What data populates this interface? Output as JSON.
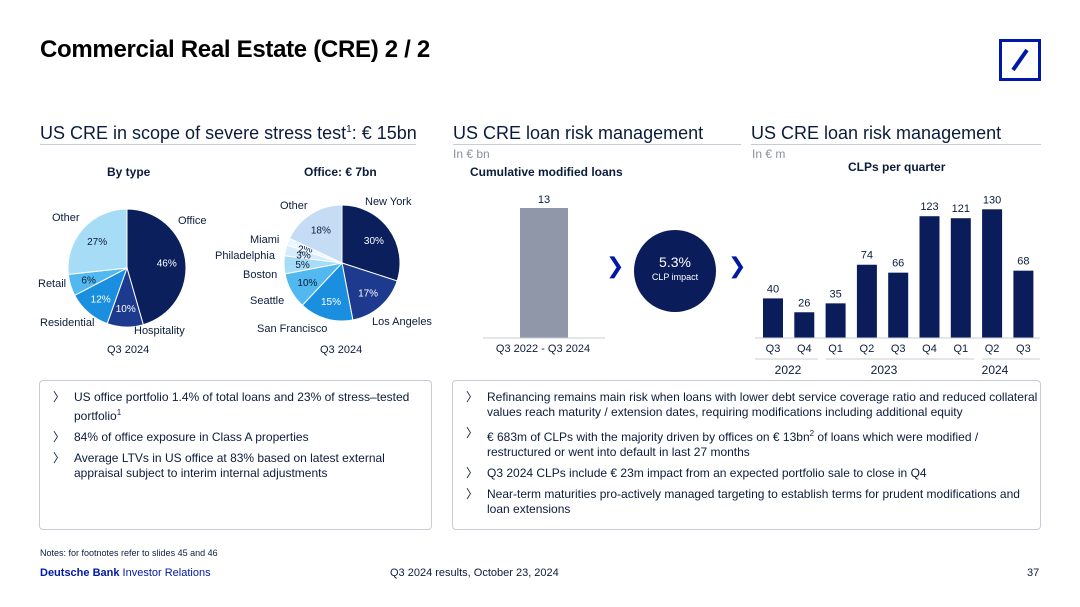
{
  "title": "Commercial Real Estate (CRE) 2 / 2",
  "sections": {
    "stress": {
      "title": "US CRE in scope of severe stress test",
      "title_sup": "1",
      "title_suffix": ": € 15bn"
    },
    "cumulative": {
      "title": "US CRE loan risk management",
      "unit": "In € bn",
      "subtitle": "Cumulative modified loans"
    },
    "clps": {
      "title": "US CRE loan risk management",
      "unit": "In € m",
      "subtitle": "CLPs per quarter"
    }
  },
  "pie_type": {
    "title": "By type",
    "caption": "Q3 2024",
    "slices": [
      {
        "name": "Office",
        "value": 46,
        "label": "46%",
        "color": "#0a1f5c"
      },
      {
        "name": "Hospitality",
        "value": 10,
        "label": "10%",
        "color": "#1d3a8f"
      },
      {
        "name": "Residential",
        "value": 12,
        "label": "12%",
        "color": "#1a8fe0"
      },
      {
        "name": "Retail",
        "value": 6,
        "label": "6%",
        "color": "#52b8f0"
      },
      {
        "name": "Other",
        "value": 27,
        "label": "27%",
        "color": "#a7dcf7"
      }
    ]
  },
  "pie_office": {
    "title": "Office: € 7bn",
    "caption": "Q3 2024",
    "slices": [
      {
        "name": "New York",
        "value": 30,
        "label": "30%",
        "color": "#0a1f5c"
      },
      {
        "name": "Los Angeles",
        "value": 17,
        "label": "17%",
        "color": "#1d3a8f"
      },
      {
        "name": "San Francisco",
        "value": 15,
        "label": "15%",
        "color": "#1a8fe0"
      },
      {
        "name": "Seattle",
        "value": 10,
        "label": "10%",
        "color": "#52b8f0"
      },
      {
        "name": "Boston",
        "value": 5,
        "label": "5%",
        "color": "#a7dcf7"
      },
      {
        "name": "Philadelphia",
        "value": 3,
        "label": "3%",
        "color": "#d6ecfb"
      },
      {
        "name": "Miami",
        "value": 2,
        "label": "2%",
        "color": "#eaf5fd"
      },
      {
        "name": "Other",
        "value": 18,
        "label": "18%",
        "color": "#c5dcf5"
      }
    ]
  },
  "chart_data": [
    {
      "type": "bar",
      "title": "Cumulative modified loans",
      "categories": [
        "Q3 2022 - Q3 2024"
      ],
      "values": [
        13
      ],
      "ylabel": "In € bn",
      "ylim": [
        0,
        14
      ]
    },
    {
      "type": "bar",
      "title": "CLPs per quarter",
      "categories": [
        "Q3",
        "Q4",
        "Q1",
        "Q2",
        "Q3",
        "Q4",
        "Q1",
        "Q2",
        "Q3"
      ],
      "year_groups": [
        "2022",
        "2023",
        "2024"
      ],
      "values": [
        40,
        26,
        35,
        74,
        66,
        123,
        121,
        130,
        68
      ],
      "ylabel": "In € m",
      "ylim": [
        0,
        140
      ]
    }
  ],
  "clp_impact": {
    "value": "5.3%",
    "label": "CLP impact"
  },
  "left_bullets": [
    {
      "text": "US office portfolio 1.4% of total loans and 23% of stress–tested portfolio",
      "sup": "1"
    },
    {
      "text": "84% of office exposure in Class A properties",
      "sup": ""
    },
    {
      "text": "Average LTVs in US office at 83% based on latest external appraisal subject to interim internal adjustments",
      "sup": ""
    }
  ],
  "right_bullets": [
    {
      "text": "Refinancing remains main risk when loans with lower debt service coverage ratio and reduced collateral values reach maturity / extension dates, requiring modifications including additional equity",
      "sup": ""
    },
    {
      "pre": "€ 683m of CLPs with the majority driven by offices on € 13bn",
      "sup": "2",
      "post": " of loans which were modified / restructured or went into default in last 27 months"
    },
    {
      "text": "Q3 2024 CLPs include € 23m impact from an expected portfolio sale to close in Q4",
      "sup": ""
    },
    {
      "text": "Near-term maturities pro-actively managed targeting to establish terms for prudent modifications and loan extensions",
      "sup": ""
    }
  ],
  "footer": {
    "notes": "Notes: for footnotes refer to slides 45 and 46",
    "brand_bold": "Deutsche Bank",
    "brand_rest": " Investor Relations",
    "event": "Q3 2024 results, October 23, 2024",
    "page": "37"
  }
}
